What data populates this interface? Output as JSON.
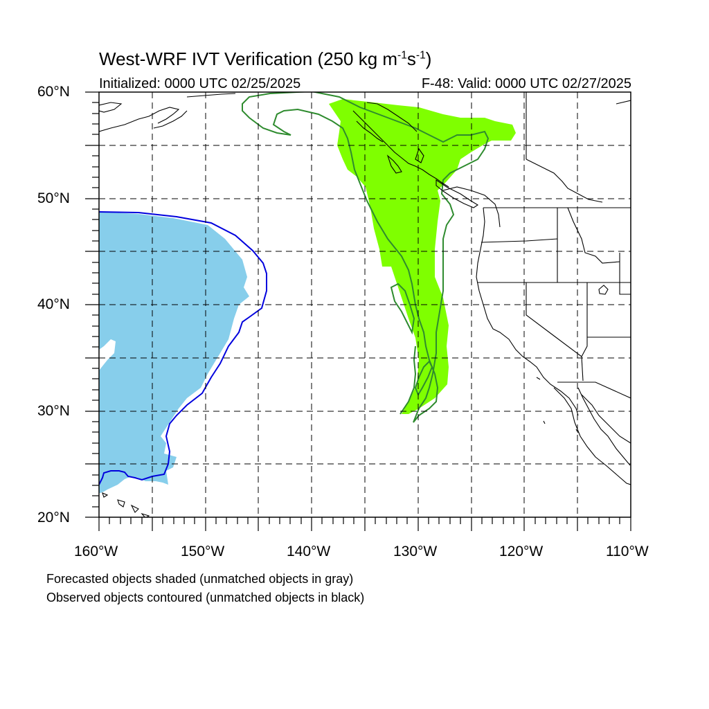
{
  "title": {
    "main": "West-WRF IVT Verification (250 kg m",
    "sup1": "-1",
    "mid": "s",
    "sup2": "-1",
    "end": ")"
  },
  "subtitle_left": "Initialized: 0000 UTC 02/25/2025",
  "subtitle_right": "F-48: Valid: 0000 UTC 02/27/2025",
  "lat_labels": [
    "60°N",
    "50°N",
    "40°N",
    "30°N",
    "20°N"
  ],
  "lon_labels": [
    "160°W",
    "150°W",
    "140°W",
    "130°W",
    "120°W",
    "110°W"
  ],
  "notes": [
    "Forecasted objects shaded (unmatched objects in gray)",
    "Observed objects contoured (unmatched objects in black)"
  ],
  "colors": {
    "forecast_object_1": "#87ceeb",
    "forecast_object_2": "#7fff00",
    "observed_object_1": "#0000dd",
    "observed_object_2": "#2e8b2e",
    "coastline": "#000000"
  },
  "map_extent": {
    "lon": [
      -160,
      -110
    ],
    "lat": [
      20,
      60
    ]
  }
}
